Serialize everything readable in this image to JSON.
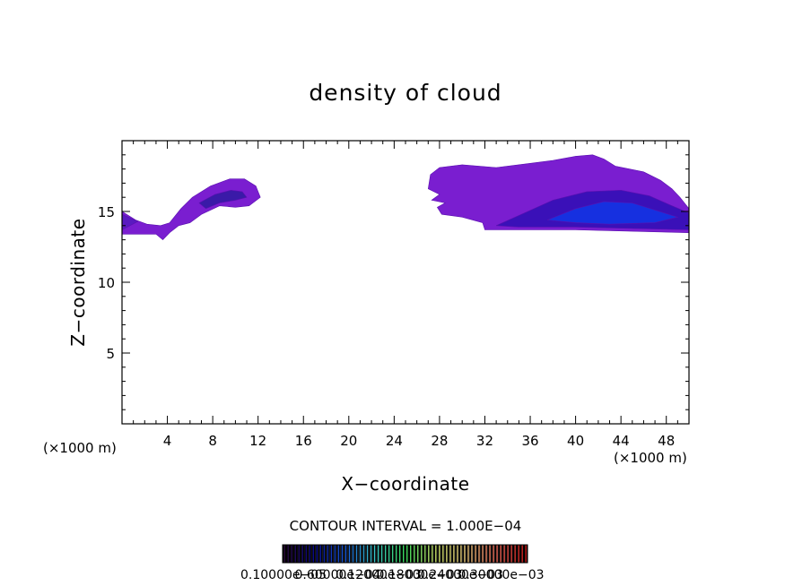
{
  "chart_data": {
    "type": "heatmap",
    "title": "density of cloud",
    "xlabel": "X−coordinate",
    "ylabel": "Z−coordinate",
    "x_unit_label": "(×1000 m)",
    "x_unit_label_right": "(×1000 m)",
    "xlim": [
      0,
      50
    ],
    "ylim": [
      0,
      20
    ],
    "x_ticks": [
      4,
      8,
      12,
      16,
      20,
      24,
      28,
      32,
      36,
      40,
      44,
      48
    ],
    "x_tick_labels": [
      "4",
      "8",
      "12",
      "16",
      "20",
      "24",
      "28",
      "32",
      "36",
      "40",
      "44",
      "48"
    ],
    "y_ticks": [
      5,
      10,
      15
    ],
    "y_tick_labels": [
      "5",
      "10",
      "15"
    ],
    "x_minor_step": 1,
    "y_minor_step": 1,
    "contour_interval_label": "CONTOUR INTERVAL = 1.000E−04",
    "colorbar_labels": [
      "0.10000e−05",
      "0.60000e−04",
      "0.12000e−03",
      "0.18000e−03",
      "0.24000e−03",
      "0.30000e−03"
    ],
    "colorbar_colors": [
      "#2a0a3a",
      "#0a0a8a",
      "#1a5ad8",
      "#3ac8c8",
      "#3ad85a",
      "#c8e06a",
      "#e8c87a",
      "#e86a5a",
      "#c81a1a"
    ],
    "regions": [
      {
        "name": "left-cloud",
        "polygon": [
          [
            0,
            15.0
          ],
          [
            1.2,
            14.4
          ],
          [
            2.2,
            14.1
          ],
          [
            3.4,
            14.0
          ],
          [
            4.2,
            14.2
          ],
          [
            5.2,
            15.2
          ],
          [
            6.2,
            16.0
          ],
          [
            7.8,
            16.8
          ],
          [
            9.5,
            17.3
          ],
          [
            10.8,
            17.3
          ],
          [
            11.8,
            16.8
          ],
          [
            12.2,
            16.0
          ],
          [
            11.2,
            15.4
          ],
          [
            10.0,
            15.3
          ],
          [
            8.6,
            15.4
          ],
          [
            7.0,
            14.8
          ],
          [
            6.0,
            14.2
          ],
          [
            5.0,
            14.0
          ],
          [
            4.2,
            13.5
          ],
          [
            3.6,
            13.0
          ],
          [
            3.0,
            13.4
          ],
          [
            2.0,
            13.4
          ],
          [
            0,
            13.4
          ]
        ]
      },
      {
        "name": "left-cloud-core",
        "polygon": [
          [
            6.8,
            15.6
          ],
          [
            8.2,
            16.2
          ],
          [
            9.6,
            16.5
          ],
          [
            10.6,
            16.4
          ],
          [
            11.0,
            16.0
          ],
          [
            10.0,
            15.8
          ],
          [
            8.6,
            15.6
          ],
          [
            7.4,
            15.2
          ]
        ]
      },
      {
        "name": "left-cloud-edge",
        "polygon": [
          [
            0,
            14.8
          ],
          [
            1.4,
            14.3
          ],
          [
            0,
            13.7
          ]
        ]
      },
      {
        "name": "right-cloud",
        "polygon": [
          [
            27.0,
            16.6
          ],
          [
            27.2,
            17.6
          ],
          [
            28.0,
            18.1
          ],
          [
            30.0,
            18.3
          ],
          [
            33.0,
            18.1
          ],
          [
            36.0,
            18.4
          ],
          [
            38.0,
            18.6
          ],
          [
            40.0,
            18.9
          ],
          [
            41.5,
            19.0
          ],
          [
            42.5,
            18.7
          ],
          [
            43.5,
            18.2
          ],
          [
            46.0,
            17.8
          ],
          [
            47.5,
            17.2
          ],
          [
            48.5,
            16.6
          ],
          [
            49.2,
            16.0
          ],
          [
            50.0,
            15.2
          ],
          [
            50.0,
            13.5
          ],
          [
            45.0,
            13.6
          ],
          [
            40.0,
            13.7
          ],
          [
            36.0,
            13.7
          ],
          [
            32.0,
            13.7
          ],
          [
            31.8,
            14.2
          ],
          [
            30.0,
            14.6
          ],
          [
            28.2,
            14.8
          ],
          [
            27.8,
            15.3
          ],
          [
            28.5,
            15.6
          ],
          [
            27.3,
            15.8
          ],
          [
            28.0,
            16.2
          ]
        ]
      },
      {
        "name": "right-cloud-mid",
        "polygon": [
          [
            33.0,
            14.0
          ],
          [
            35.5,
            14.9
          ],
          [
            38.0,
            15.8
          ],
          [
            41.0,
            16.4
          ],
          [
            44.0,
            16.5
          ],
          [
            46.5,
            16.1
          ],
          [
            48.5,
            15.4
          ],
          [
            50.0,
            14.9
          ],
          [
            50.0,
            13.7
          ],
          [
            45.0,
            13.8
          ],
          [
            40.0,
            13.9
          ],
          [
            35.0,
            13.9
          ]
        ]
      },
      {
        "name": "right-cloud-core",
        "polygon": [
          [
            37.5,
            14.4
          ],
          [
            40.0,
            15.2
          ],
          [
            42.5,
            15.7
          ],
          [
            45.0,
            15.6
          ],
          [
            47.0,
            15.1
          ],
          [
            49.0,
            14.6
          ],
          [
            47.0,
            14.2
          ],
          [
            43.0,
            14.1
          ],
          [
            40.0,
            14.2
          ]
        ]
      }
    ]
  }
}
